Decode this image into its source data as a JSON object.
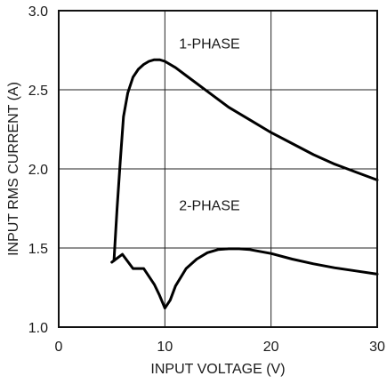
{
  "chart_data": {
    "type": "line",
    "xlabel": "INPUT VOLTAGE (V)",
    "ylabel": "INPUT RMS CURRENT (A)",
    "xlim": [
      0,
      30
    ],
    "ylim": [
      1.0,
      3.0
    ],
    "xticks": [
      "0",
      "10",
      "20",
      "30"
    ],
    "yticks": [
      "1.0",
      "1.5",
      "2.0",
      "2.5",
      "3.0"
    ],
    "grid": true,
    "series": [
      {
        "name": "1-PHASE",
        "x": [
          5.2,
          5.5,
          5.8,
          6.1,
          6.5,
          7.0,
          7.5,
          8.0,
          8.5,
          9.0,
          9.5,
          10.0,
          11,
          12,
          14,
          16,
          18,
          20,
          22,
          24,
          26,
          28,
          30
        ],
        "y": [
          1.42,
          1.75,
          2.05,
          2.33,
          2.48,
          2.58,
          2.63,
          2.66,
          2.68,
          2.69,
          2.69,
          2.68,
          2.64,
          2.59,
          2.49,
          2.39,
          2.31,
          2.23,
          2.16,
          2.09,
          2.03,
          1.98,
          1.93
        ]
      },
      {
        "name": "2-PHASE",
        "x": [
          5,
          6,
          7,
          8,
          9,
          9.5,
          10,
          10.5,
          11,
          12,
          13,
          14,
          15,
          16,
          17,
          18,
          20,
          22,
          24,
          26,
          28,
          30
        ],
        "y": [
          1.41,
          1.46,
          1.37,
          1.37,
          1.27,
          1.2,
          1.12,
          1.17,
          1.26,
          1.37,
          1.43,
          1.47,
          1.49,
          1.495,
          1.495,
          1.49,
          1.465,
          1.43,
          1.4,
          1.375,
          1.355,
          1.335
        ]
      }
    ],
    "annotations": [
      "1-PHASE",
      "2-PHASE"
    ]
  }
}
